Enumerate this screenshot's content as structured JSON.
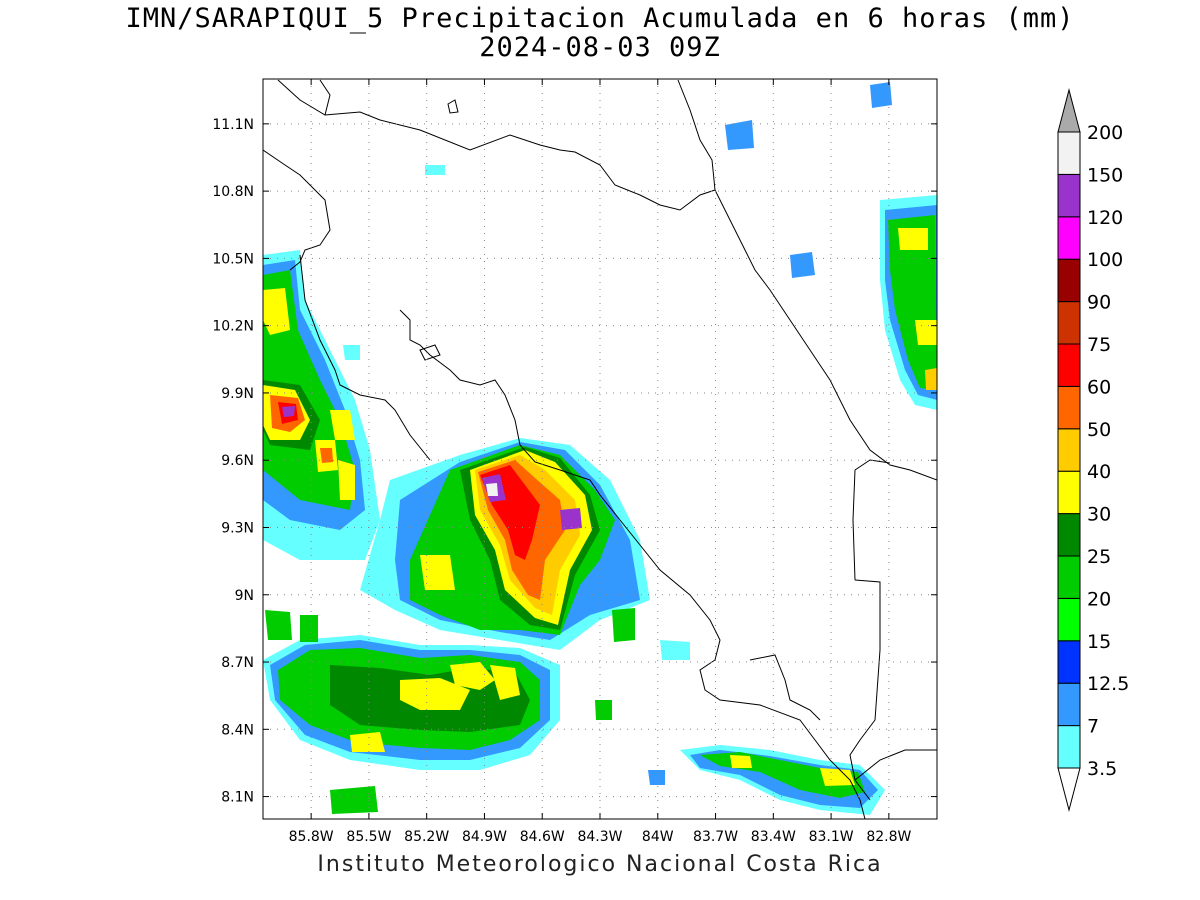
{
  "header": {
    "title_line1": "IMN/SARAPIQUI_5 Precipitacion Acumulada en 6 horas (mm)",
    "title_line2": "2024-08-03 09Z"
  },
  "footer": {
    "credit": "Instituto Meteorologico Nacional Costa Rica"
  },
  "map": {
    "lon_range": [
      -86.05,
      -82.55
    ],
    "lat_range": [
      8.0,
      11.3
    ],
    "lon_ticks": [
      {
        "value": -85.8,
        "label": "85.8W"
      },
      {
        "value": -85.5,
        "label": "85.5W"
      },
      {
        "value": -85.2,
        "label": "85.2W"
      },
      {
        "value": -84.9,
        "label": "84.9W"
      },
      {
        "value": -84.6,
        "label": "84.6W"
      },
      {
        "value": -84.3,
        "label": "84.3W"
      },
      {
        "value": -84.0,
        "label": "84W"
      },
      {
        "value": -83.7,
        "label": "83.7W"
      },
      {
        "value": -83.4,
        "label": "83.4W"
      },
      {
        "value": -83.1,
        "label": "83.1W"
      },
      {
        "value": -82.8,
        "label": "82.8W"
      }
    ],
    "lat_ticks": [
      {
        "value": 11.1,
        "label": "11.1N"
      },
      {
        "value": 10.8,
        "label": "10.8N"
      },
      {
        "value": 10.5,
        "label": "10.5N"
      },
      {
        "value": 10.2,
        "label": "10.2N"
      },
      {
        "value": 9.9,
        "label": "9.9N"
      },
      {
        "value": 9.6,
        "label": "9.6N"
      },
      {
        "value": 9.3,
        "label": "9.3N"
      },
      {
        "value": 9.0,
        "label": "9N"
      },
      {
        "value": 8.7,
        "label": "8.7N"
      },
      {
        "value": 8.4,
        "label": "8.4N"
      },
      {
        "value": 8.1,
        "label": "8.1N"
      }
    ],
    "grid": true,
    "grid_style": "dotted"
  },
  "colorbar": {
    "labels": [
      "3.5",
      "7",
      "12.5",
      "15",
      "20",
      "25",
      "30",
      "40",
      "50",
      "60",
      "75",
      "90",
      "100",
      "120",
      "150",
      "200"
    ],
    "colors": [
      "#66ffff",
      "#3399ff",
      "#0033ff",
      "#00ff00",
      "#00cc00",
      "#008800",
      "#ffff00",
      "#ffcc00",
      "#ff6600",
      "#ff0000",
      "#cc3300",
      "#990000",
      "#ff00ff",
      "#9933cc",
      "#f2f2f2"
    ],
    "under_color": "#ffffff",
    "over_color": "#aaaaaa"
  }
}
